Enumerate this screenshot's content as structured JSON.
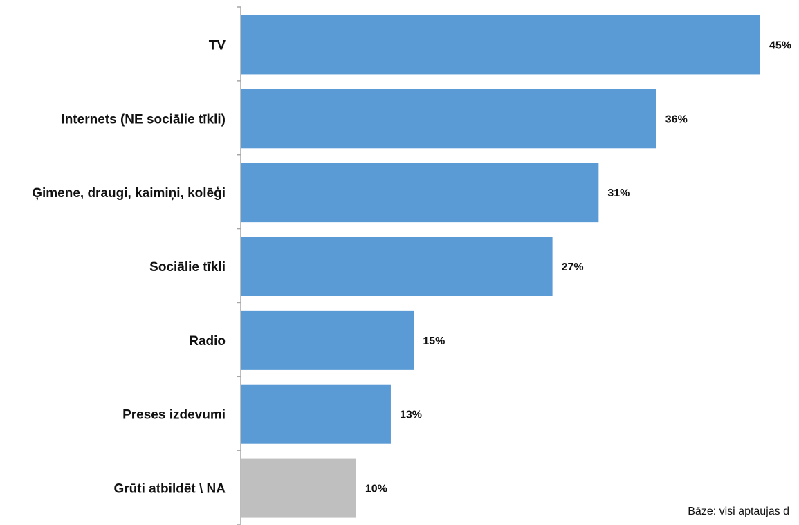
{
  "chart_data": {
    "type": "bar",
    "orientation": "horizontal",
    "categories": [
      "TV",
      "Internets (NE sociālie tīkli)",
      "Ģimene, draugi, kaimiņi, kolēģi",
      "Sociālie tīkli",
      "Radio",
      "Preses izdevumi",
      "Grūti atbildēt \\ NA"
    ],
    "values": [
      45,
      36,
      31,
      27,
      15,
      13,
      10
    ],
    "value_labels": [
      "45%",
      "36%",
      "31%",
      "27%",
      "15%",
      "13%",
      "10%"
    ],
    "unit": "%",
    "xlim": [
      0,
      50
    ],
    "grid": false,
    "colors": [
      "#5b9bd5",
      "#5b9bd5",
      "#5b9bd5",
      "#5b9bd5",
      "#5b9bd5",
      "#5b9bd5",
      "#bfbfbf"
    ],
    "axis_color": "#a6a6a6"
  },
  "footnote": "Bāze: visi aptaujas d"
}
